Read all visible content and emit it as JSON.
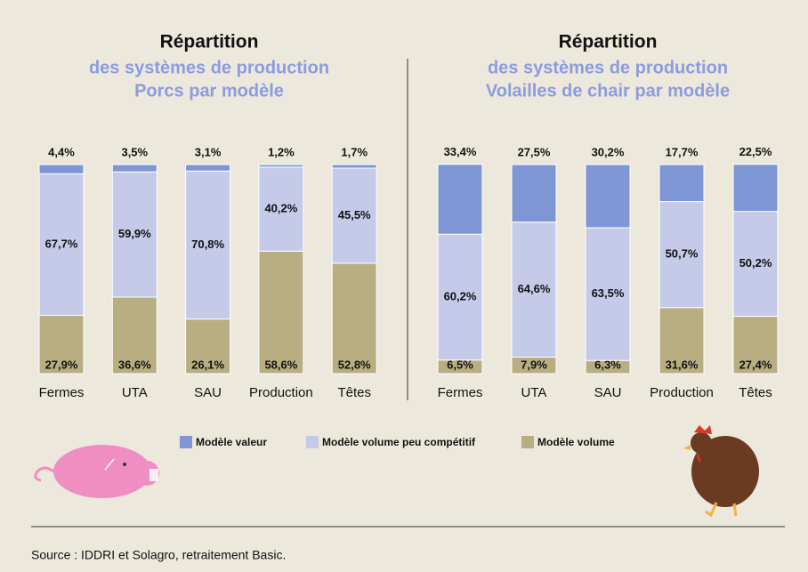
{
  "chart_data": [
    {
      "type": "bar",
      "stacked": true,
      "title": "Répartition",
      "subtitle": [
        "des systèmes de production",
        "Porcs par modèle"
      ],
      "categories": [
        "Fermes",
        "UTA",
        "SAU",
        "Production",
        "Têtes"
      ],
      "series": [
        {
          "values": [
            4.4,
            3.5,
            3.1,
            1.2,
            1.7
          ],
          "value_labels": [
            "4,4%",
            "3,5%",
            "3,1%",
            "1,2%",
            "1,7%"
          ]
        },
        {
          "values": [
            67.7,
            59.9,
            70.8,
            40.2,
            45.5
          ],
          "value_labels": [
            "67,7%",
            "59,9%",
            "70,8%",
            "40,2%",
            "45,5%"
          ]
        },
        {
          "values": [
            27.9,
            36.6,
            26.1,
            58.6,
            52.8
          ],
          "value_labels": [
            "27,9%",
            "36,6%",
            "26,1%",
            "58,6%",
            "52,8%"
          ]
        }
      ]
    },
    {
      "type": "bar",
      "stacked": true,
      "title": "Répartition",
      "subtitle": [
        "des systèmes de production",
        "Volailles de chair par modèle"
      ],
      "categories": [
        "Fermes",
        "UTA",
        "SAU",
        "Production",
        "Têtes"
      ],
      "series": [
        {
          "values": [
            33.4,
            27.5,
            30.2,
            17.7,
            22.5
          ],
          "value_labels": [
            "33,4%",
            "27,5%",
            "30,2%",
            "17,7%",
            "22,5%"
          ]
        },
        {
          "values": [
            60.2,
            64.6,
            63.5,
            50.7,
            50.2
          ],
          "value_labels": [
            "60,2%",
            "64,6%",
            "63,5%",
            "50,7%",
            "50,2%"
          ]
        },
        {
          "values": [
            6.5,
            7.9,
            6.3,
            31.6,
            27.4
          ],
          "value_labels": [
            "6,5%",
            "7,9%",
            "6,3%",
            "31,6%",
            "27,4%"
          ]
        }
      ]
    }
  ],
  "legend": [
    {
      "name": "Modèle valeur",
      "color": "#7f96d4"
    },
    {
      "name": "Modèle volume peu compétitif",
      "color": "#c5cae9"
    },
    {
      "name": "Modèle volume",
      "color": "#b9ae82"
    }
  ],
  "source": "Source : IDDRI et Solagro, retraitement Basic."
}
